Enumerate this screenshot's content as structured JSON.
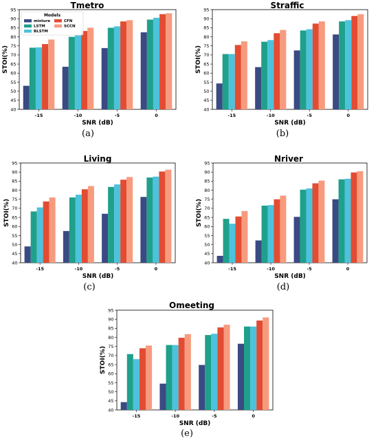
{
  "legend": {
    "title": "Models",
    "entries": [
      "mixture",
      "LSTM",
      "BLSTM",
      "CFN",
      "SCCN"
    ]
  },
  "colors": [
    "#3a4a82",
    "#1fa08b",
    "#4dc2dc",
    "#e24c33",
    "#f79b7e"
  ],
  "chart_data": [
    {
      "type": "bar",
      "title": "Tmetro",
      "caption": "(a)",
      "xlabel": "SNR (dB)",
      "ylabel": "STOI(%)",
      "ylim": [
        40,
        95
      ],
      "yticks": [
        40,
        45,
        50,
        55,
        60,
        65,
        70,
        75,
        80,
        85,
        90,
        95
      ],
      "categories": [
        "-15",
        "-10",
        "-5",
        "0"
      ],
      "series": [
        {
          "name": "mixture",
          "values": [
            53,
            63.5,
            73.8,
            82.5
          ]
        },
        {
          "name": "LSTM",
          "values": [
            74,
            80,
            85,
            89.5
          ]
        },
        {
          "name": "BLSTM",
          "values": [
            74.2,
            80.8,
            85.8,
            90.5
          ]
        },
        {
          "name": "CFN",
          "values": [
            76,
            83.2,
            88.5,
            92.5
          ]
        },
        {
          "name": "SCCN",
          "values": [
            78.5,
            85,
            89.2,
            93
          ]
        }
      ]
    },
    {
      "type": "bar",
      "title": "Straffic",
      "caption": "(b)",
      "xlabel": "SNR (dB)",
      "ylabel": "STOI(%)",
      "ylim": [
        40,
        95
      ],
      "yticks": [
        40,
        45,
        50,
        55,
        60,
        65,
        70,
        75,
        80,
        85,
        90,
        95
      ],
      "categories": [
        "-15",
        "-10",
        "-5",
        "0"
      ],
      "series": [
        {
          "name": "mixture",
          "values": [
            54.3,
            63.3,
            72.5,
            81.3
          ]
        },
        {
          "name": "LSTM",
          "values": [
            70.5,
            77.3,
            83.5,
            88.5
          ]
        },
        {
          "name": "BLSTM",
          "values": [
            70.5,
            78.2,
            84.2,
            89.2
          ]
        },
        {
          "name": "CFN",
          "values": [
            75.5,
            82,
            87.3,
            91.5
          ]
        },
        {
          "name": "SCCN",
          "values": [
            77.5,
            83.8,
            88.5,
            92.5
          ]
        }
      ]
    },
    {
      "type": "bar",
      "title": "Living",
      "caption": "(c)",
      "xlabel": "SNR (dB)",
      "ylabel": "STOI(%)",
      "ylim": [
        40,
        95
      ],
      "yticks": [
        40,
        45,
        50,
        55,
        60,
        65,
        70,
        75,
        80,
        85,
        90,
        95
      ],
      "categories": [
        "-15",
        "-10",
        "-5",
        "0"
      ],
      "series": [
        {
          "name": "mixture",
          "values": [
            49,
            57.5,
            67,
            76.3
          ]
        },
        {
          "name": "LSTM",
          "values": [
            68.3,
            76,
            81.8,
            87
          ]
        },
        {
          "name": "BLSTM",
          "values": [
            70.5,
            77.5,
            83.2,
            87.5
          ]
        },
        {
          "name": "CFN",
          "values": [
            73.8,
            80.5,
            85.8,
            90.3
          ]
        },
        {
          "name": "SCCN",
          "values": [
            76,
            82.3,
            87.3,
            91.3
          ]
        }
      ]
    },
    {
      "type": "bar",
      "title": "Nriver",
      "caption": "(d)",
      "xlabel": "SNR (dB)",
      "ylabel": "STOI(%)",
      "ylim": [
        40,
        95
      ],
      "yticks": [
        40,
        45,
        50,
        55,
        60,
        65,
        70,
        75,
        80,
        85,
        90,
        95
      ],
      "categories": [
        "-15",
        "-10",
        "-5",
        "0"
      ],
      "series": [
        {
          "name": "mixture",
          "values": [
            43.8,
            52.3,
            65.3,
            75
          ]
        },
        {
          "name": "LSTM",
          "values": [
            64.2,
            71.5,
            80.3,
            86
          ]
        },
        {
          "name": "BLSTM",
          "values": [
            61.5,
            71.8,
            81,
            86.3
          ]
        },
        {
          "name": "CFN",
          "values": [
            65.5,
            75,
            83.8,
            89.8
          ]
        },
        {
          "name": "SCCN",
          "values": [
            68.5,
            77,
            85.3,
            90.5
          ]
        }
      ]
    },
    {
      "type": "bar",
      "title": "Omeeting",
      "caption": "(e)",
      "xlabel": "SNR (dB)",
      "ylabel": "STOI(%)",
      "ylim": [
        40,
        95
      ],
      "yticks": [
        40,
        45,
        50,
        55,
        60,
        65,
        70,
        75,
        80,
        85,
        90,
        95
      ],
      "categories": [
        "-15",
        "-10",
        "-5",
        "0"
      ],
      "series": [
        {
          "name": "mixture",
          "values": [
            44.3,
            54.5,
            64.8,
            76.5
          ]
        },
        {
          "name": "LSTM",
          "values": [
            70.8,
            75.8,
            81.3,
            86
          ]
        },
        {
          "name": "BLSTM",
          "values": [
            68,
            75.8,
            82,
            86
          ]
        },
        {
          "name": "CFN",
          "values": [
            74,
            79.8,
            85.5,
            89.3
          ]
        },
        {
          "name": "SCCN",
          "values": [
            75.5,
            81.8,
            87,
            91
          ]
        }
      ]
    }
  ]
}
